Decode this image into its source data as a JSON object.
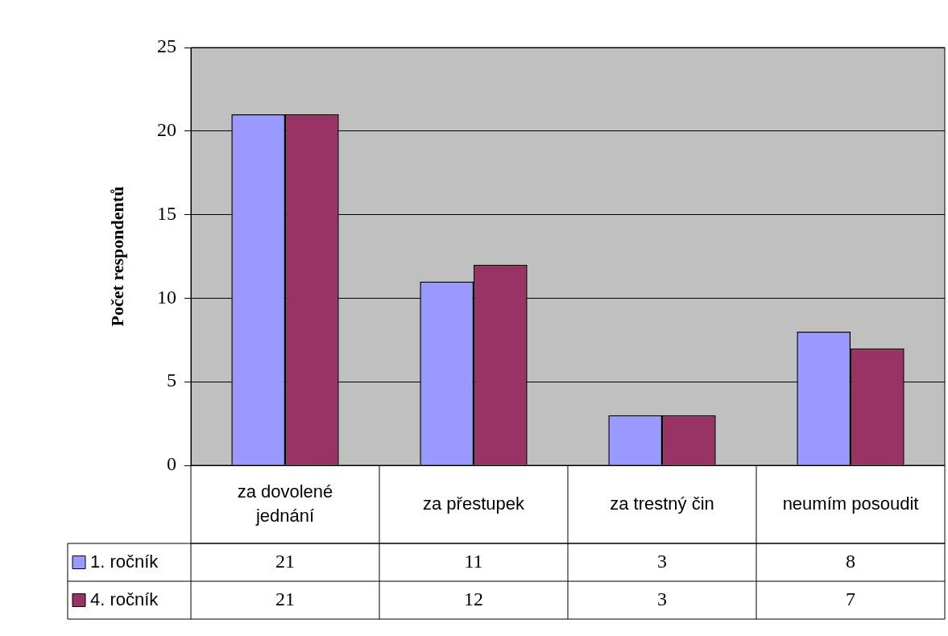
{
  "chart_data": {
    "type": "bar",
    "ylabel": "Počet respondentů",
    "categories": [
      "za dovolené jednání",
      "za přestupek",
      "za trestný čin",
      "neumím posoudit"
    ],
    "series": [
      {
        "name": "1. ročník",
        "color": "#9999ff",
        "values": [
          21,
          11,
          3,
          8
        ]
      },
      {
        "name": "4. ročník",
        "color": "#993366",
        "values": [
          21,
          12,
          3,
          7
        ]
      }
    ],
    "ylim": [
      0,
      25
    ],
    "yticks": [
      0,
      5,
      10,
      15,
      20,
      25
    ],
    "grid": "y",
    "legend": "bottom left",
    "data_labels": true
  }
}
